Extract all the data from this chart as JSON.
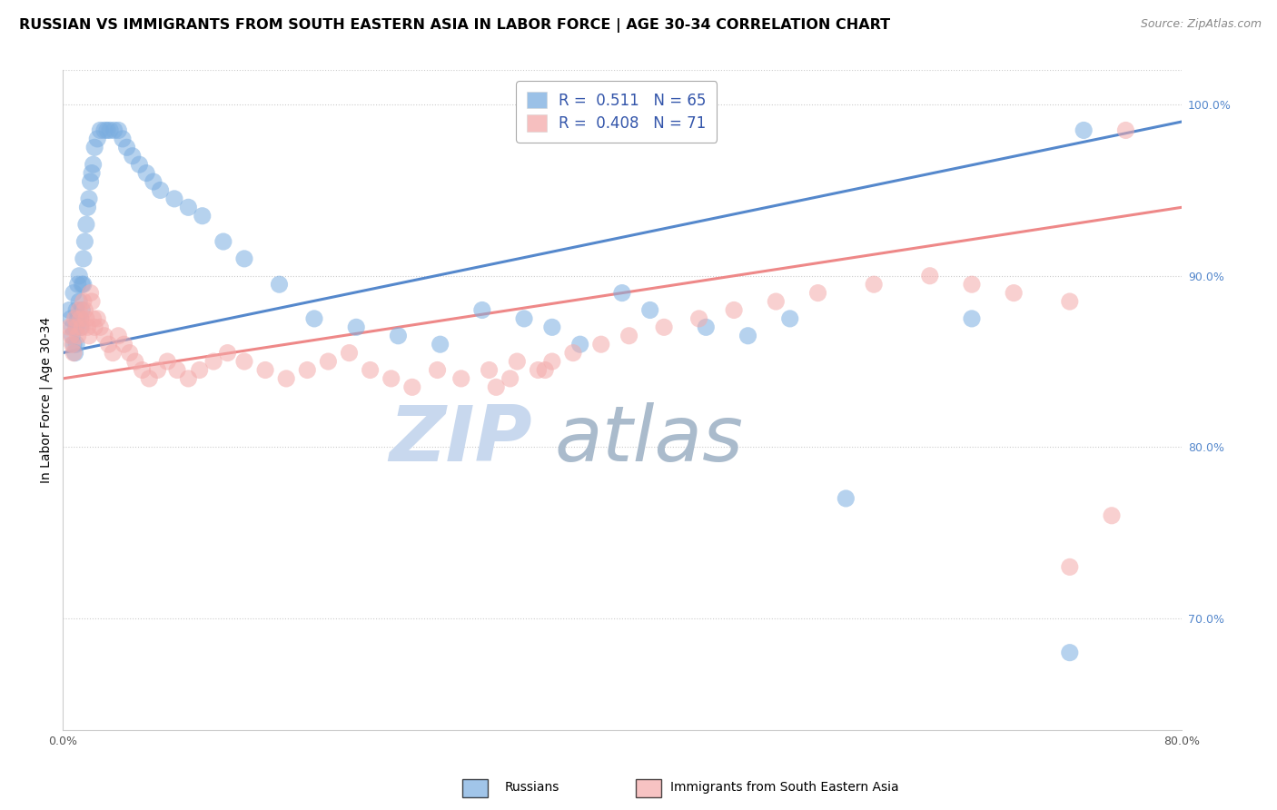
{
  "title": "RUSSIAN VS IMMIGRANTS FROM SOUTH EASTERN ASIA IN LABOR FORCE | AGE 30-34 CORRELATION CHART",
  "source": "Source: ZipAtlas.com",
  "ylabel": "In Labor Force | Age 30-34",
  "xlim": [
    0.0,
    0.8
  ],
  "ylim": [
    0.635,
    1.02
  ],
  "x_ticks": [
    0.0,
    0.8
  ],
  "x_tick_labels": [
    "0.0%",
    "80.0%"
  ],
  "y_ticks": [
    0.7,
    0.8,
    0.9,
    1.0
  ],
  "y_tick_labels": [
    "70.0%",
    "80.0%",
    "90.0%",
    "100.0%"
  ],
  "blue_R": 0.511,
  "blue_N": 65,
  "pink_R": 0.408,
  "pink_N": 71,
  "blue_color": "#7AADE0",
  "pink_color": "#F4AAAA",
  "blue_line_color": "#5588CC",
  "pink_line_color": "#EE8888",
  "legend_label_blue": "Russians",
  "legend_label_pink": "Immigrants from South Eastern Asia",
  "watermark_zip": "ZIP",
  "watermark_atlas": "atlas",
  "watermark_color_zip": "#C8D8EE",
  "watermark_color_atlas": "#AABBCC",
  "title_fontsize": 11.5,
  "axis_label_fontsize": 10,
  "tick_fontsize": 9,
  "blue_x": [
    0.005,
    0.006,
    0.007,
    0.007,
    0.008,
    0.008,
    0.009,
    0.01,
    0.01,
    0.01,
    0.011,
    0.011,
    0.012,
    0.012,
    0.013,
    0.013,
    0.014,
    0.014,
    0.015,
    0.015,
    0.016,
    0.017,
    0.018,
    0.019,
    0.02,
    0.021,
    0.022,
    0.023,
    0.025,
    0.027,
    0.03,
    0.032,
    0.034,
    0.037,
    0.04,
    0.043,
    0.046,
    0.05,
    0.055,
    0.06,
    0.065,
    0.07,
    0.08,
    0.09,
    0.1,
    0.115,
    0.13,
    0.155,
    0.18,
    0.21,
    0.24,
    0.27,
    0.3,
    0.33,
    0.35,
    0.37,
    0.4,
    0.42,
    0.46,
    0.49,
    0.52,
    0.56,
    0.65,
    0.72,
    0.73
  ],
  "blue_y": [
    0.88,
    0.875,
    0.87,
    0.865,
    0.89,
    0.86,
    0.855,
    0.88,
    0.87,
    0.86,
    0.895,
    0.875,
    0.9,
    0.885,
    0.875,
    0.87,
    0.895,
    0.88,
    0.91,
    0.895,
    0.92,
    0.93,
    0.94,
    0.945,
    0.955,
    0.96,
    0.965,
    0.975,
    0.98,
    0.985,
    0.985,
    0.985,
    0.985,
    0.985,
    0.985,
    0.98,
    0.975,
    0.97,
    0.965,
    0.96,
    0.955,
    0.95,
    0.945,
    0.94,
    0.935,
    0.92,
    0.91,
    0.895,
    0.875,
    0.87,
    0.865,
    0.86,
    0.88,
    0.875,
    0.87,
    0.86,
    0.89,
    0.88,
    0.87,
    0.865,
    0.875,
    0.77,
    0.875,
    0.68,
    0.985
  ],
  "pink_x": [
    0.005,
    0.006,
    0.007,
    0.008,
    0.009,
    0.01,
    0.011,
    0.012,
    0.013,
    0.014,
    0.015,
    0.016,
    0.017,
    0.018,
    0.019,
    0.02,
    0.021,
    0.022,
    0.023,
    0.025,
    0.027,
    0.03,
    0.033,
    0.036,
    0.04,
    0.044,
    0.048,
    0.052,
    0.057,
    0.062,
    0.068,
    0.075,
    0.082,
    0.09,
    0.098,
    0.108,
    0.118,
    0.13,
    0.145,
    0.16,
    0.175,
    0.19,
    0.205,
    0.22,
    0.235,
    0.25,
    0.268,
    0.285,
    0.305,
    0.325,
    0.345,
    0.365,
    0.385,
    0.405,
    0.43,
    0.455,
    0.48,
    0.51,
    0.54,
    0.58,
    0.62,
    0.65,
    0.68,
    0.72,
    0.31,
    0.32,
    0.34,
    0.35,
    0.72,
    0.75,
    0.76
  ],
  "pink_y": [
    0.87,
    0.865,
    0.86,
    0.855,
    0.875,
    0.87,
    0.865,
    0.88,
    0.875,
    0.87,
    0.885,
    0.88,
    0.875,
    0.87,
    0.865,
    0.89,
    0.885,
    0.875,
    0.87,
    0.875,
    0.87,
    0.865,
    0.86,
    0.855,
    0.865,
    0.86,
    0.855,
    0.85,
    0.845,
    0.84,
    0.845,
    0.85,
    0.845,
    0.84,
    0.845,
    0.85,
    0.855,
    0.85,
    0.845,
    0.84,
    0.845,
    0.85,
    0.855,
    0.845,
    0.84,
    0.835,
    0.845,
    0.84,
    0.845,
    0.85,
    0.845,
    0.855,
    0.86,
    0.865,
    0.87,
    0.875,
    0.88,
    0.885,
    0.89,
    0.895,
    0.9,
    0.895,
    0.89,
    0.885,
    0.835,
    0.84,
    0.845,
    0.85,
    0.73,
    0.76,
    0.985
  ]
}
